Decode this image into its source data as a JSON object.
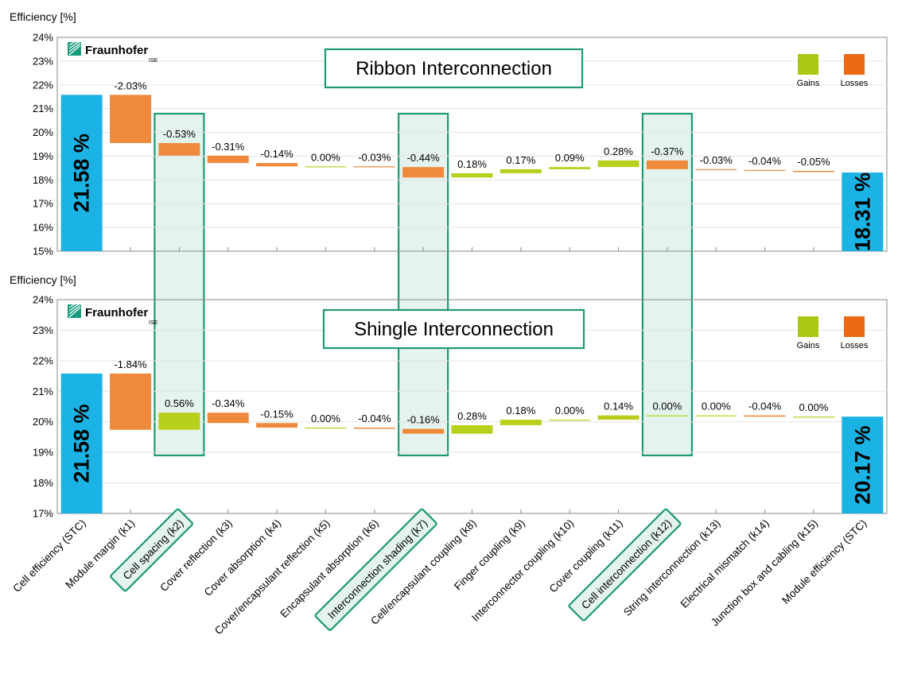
{
  "colors": {
    "start_end": "#1bb3e3",
    "loss": "#ef8a3c",
    "gain": "#b8cf1c",
    "highlight_fill": "#e4f3ee",
    "highlight_stroke": "#1f9a73",
    "legend_gain": "#a9c814",
    "legend_loss": "#ec6a13",
    "logo_green": "#179c7d"
  },
  "legend": {
    "gains": "Gains",
    "losses": "Losses"
  },
  "logo": {
    "name": "Fraunhofer",
    "sub": "ISE"
  },
  "categories": [
    "Cell efficiency (STC)",
    "Module margin (k1)",
    "Cell spacing (k2)",
    "Cover reflection (k3)",
    "Cover absorption (k4)",
    "Cover/encapsulant reflection (k5)",
    "Encapsulant absorption (k6)",
    "Interconnection shading (k7)",
    "Cell/encapsulant coupling (k8)",
    "Finger coupling (k9)",
    "Interconnector coupling (k10)",
    "Cover coupling (k11)",
    "Cell interconnection (k12)",
    "String interconnection (k13)",
    "Electrical mismatch (k14)",
    "Junction box and cabling (k15)",
    "Module efficiency (STC)"
  ],
  "highlighted_indices": [
    2,
    7,
    12
  ],
  "chart_data": [
    {
      "type": "waterfall",
      "title": "Ribbon Interconnection",
      "ylabel": "Efficiency [%]",
      "ylim": [
        15,
        24
      ],
      "yticks": [
        "15%",
        "16%",
        "17%",
        "18%",
        "19%",
        "20%",
        "21%",
        "22%",
        "23%",
        "24%"
      ],
      "start": 21.58,
      "start_label": "21.58 %",
      "changes": [
        -2.03,
        -0.53,
        -0.31,
        -0.14,
        0.0,
        -0.03,
        -0.44,
        0.18,
        0.17,
        0.09,
        0.28,
        -0.37,
        -0.03,
        -0.04,
        -0.05
      ],
      "change_labels": [
        "-2.03%",
        "-0.53%",
        "-0.31%",
        "-0.14%",
        "0.00%",
        "-0.03%",
        "-0.44%",
        "0.18%",
        "0.17%",
        "0.09%",
        "0.28%",
        "-0.37%",
        "-0.03%",
        "-0.04%",
        "-0.05%"
      ],
      "end": 18.31,
      "end_label": "18.31 %"
    },
    {
      "type": "waterfall",
      "title": "Shingle Interconnection",
      "ylabel": "Efficiency [%]",
      "ylim": [
        17,
        24
      ],
      "yticks": [
        "17%",
        "18%",
        "19%",
        "20%",
        "21%",
        "22%",
        "23%",
        "24%"
      ],
      "start": 21.58,
      "start_label": "21.58 %",
      "changes": [
        -1.84,
        0.56,
        -0.34,
        -0.15,
        0.0,
        -0.04,
        -0.16,
        0.28,
        0.18,
        0.0,
        0.14,
        0.0,
        0.0,
        -0.04,
        0.0
      ],
      "change_labels": [
        "-1.84%",
        "0.56%",
        "-0.34%",
        "-0.15%",
        "0.00%",
        "-0.04%",
        "-0.16%",
        "0.28%",
        "0.18%",
        "0.00%",
        "0.14%",
        "0.00%",
        "0.00%",
        "-0.04%",
        "0.00%"
      ],
      "end": 20.17,
      "end_label": "20.17 %"
    }
  ]
}
